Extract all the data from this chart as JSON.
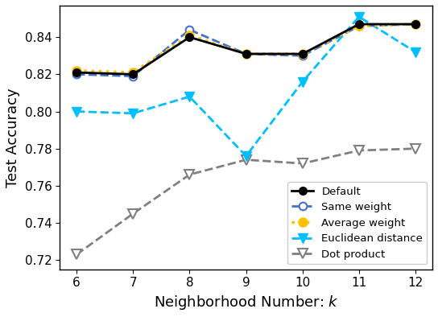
{
  "k": [
    6,
    7,
    8,
    9,
    10,
    11,
    12
  ],
  "default": [
    0.821,
    0.82,
    0.84,
    0.831,
    0.831,
    0.847,
    0.847
  ],
  "same_weight": [
    0.82,
    0.819,
    0.844,
    0.831,
    0.83,
    0.846,
    0.847
  ],
  "average_weight": [
    0.822,
    0.821,
    0.841,
    0.831,
    0.831,
    0.846,
    0.847
  ],
  "euclidean": [
    0.8,
    0.799,
    0.808,
    0.776,
    0.816,
    0.851,
    0.832
  ],
  "dot_product": [
    0.723,
    0.745,
    0.766,
    0.774,
    0.772,
    0.779,
    0.78
  ],
  "colors": {
    "default": "#000000",
    "same_weight": "#4472c4",
    "average_weight": "#ffc000",
    "euclidean": "#00bfff",
    "dot_product": "#808080"
  },
  "xlabel": "Neighborhood Number: $k$",
  "ylabel": "Test Accuracy",
  "ylim": [
    0.715,
    0.857
  ],
  "yticks": [
    0.72,
    0.74,
    0.76,
    0.78,
    0.8,
    0.82,
    0.84
  ],
  "legend_labels": [
    "Default",
    "Same weight",
    "Average weight",
    "Euclidean distance",
    "Dot product"
  ],
  "figsize": [
    5.44,
    3.94
  ],
  "dpi": 100
}
